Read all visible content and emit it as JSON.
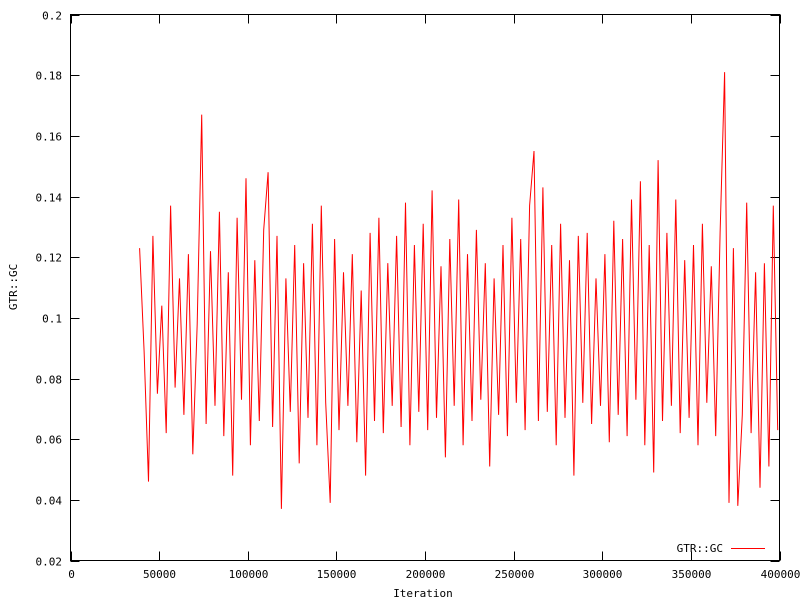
{
  "chart_data": {
    "type": "line",
    "title": "",
    "xlabel": "Iteration",
    "ylabel": "GTR::GC",
    "xlim": [
      0,
      400000
    ],
    "ylim": [
      0.02,
      0.2
    ],
    "xticks": [
      "0",
      "50000",
      "100000",
      "150000",
      "200000",
      "250000",
      "300000",
      "350000",
      "400000"
    ],
    "xtick_values": [
      0,
      50000,
      100000,
      150000,
      200000,
      250000,
      300000,
      350000,
      400000
    ],
    "yticks": [
      "0.02",
      "0.04",
      "0.06",
      "0.08",
      "0.1",
      "0.12",
      "0.14",
      "0.16",
      "0.18",
      "0.2"
    ],
    "ytick_values": [
      0.02,
      0.04,
      0.06,
      0.08,
      0.1,
      0.12,
      0.14,
      0.16,
      0.18,
      0.2
    ],
    "grid": false,
    "legend_position": "bottom-right",
    "series": [
      {
        "name": "GTR::GC",
        "color": "#ff0000",
        "x_start": 39000,
        "x_step": 2500,
        "values": [
          0.123,
          0.089,
          0.046,
          0.127,
          0.075,
          0.104,
          0.062,
          0.137,
          0.077,
          0.113,
          0.068,
          0.121,
          0.055,
          0.098,
          0.167,
          0.065,
          0.122,
          0.071,
          0.135,
          0.061,
          0.115,
          0.048,
          0.133,
          0.073,
          0.146,
          0.058,
          0.119,
          0.066,
          0.129,
          0.148,
          0.064,
          0.127,
          0.037,
          0.113,
          0.069,
          0.124,
          0.052,
          0.118,
          0.067,
          0.131,
          0.058,
          0.137,
          0.072,
          0.039,
          0.126,
          0.063,
          0.115,
          0.071,
          0.121,
          0.059,
          0.109,
          0.048,
          0.128,
          0.066,
          0.133,
          0.062,
          0.118,
          0.071,
          0.127,
          0.064,
          0.138,
          0.058,
          0.124,
          0.069,
          0.131,
          0.063,
          0.142,
          0.067,
          0.117,
          0.054,
          0.126,
          0.071,
          0.139,
          0.058,
          0.121,
          0.066,
          0.129,
          0.073,
          0.118,
          0.051,
          0.113,
          0.068,
          0.124,
          0.061,
          0.133,
          0.072,
          0.126,
          0.063,
          0.137,
          0.155,
          0.066,
          0.143,
          0.069,
          0.124,
          0.058,
          0.131,
          0.067,
          0.119,
          0.048,
          0.127,
          0.072,
          0.128,
          0.065,
          0.113,
          0.071,
          0.121,
          0.059,
          0.132,
          0.068,
          0.126,
          0.061,
          0.139,
          0.073,
          0.145,
          0.058,
          0.124,
          0.049,
          0.152,
          0.066,
          0.128,
          0.071,
          0.139,
          0.062,
          0.119,
          0.067,
          0.124,
          0.058,
          0.131,
          0.072,
          0.117,
          0.061,
          0.128,
          0.181,
          0.039,
          0.123,
          0.038,
          0.068,
          0.138,
          0.062,
          0.115,
          0.044,
          0.118,
          0.051,
          0.137,
          0.063
        ]
      }
    ]
  }
}
